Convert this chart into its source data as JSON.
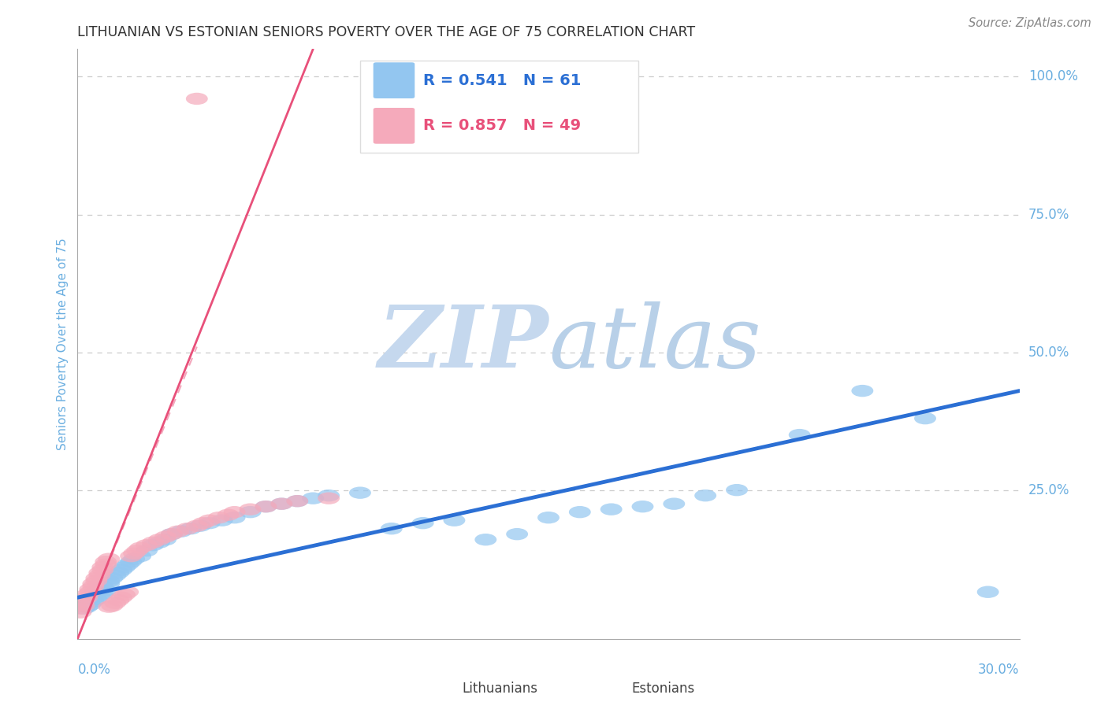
{
  "title": "LITHUANIAN VS ESTONIAN SENIORS POVERTY OVER THE AGE OF 75 CORRELATION CHART",
  "source": "Source: ZipAtlas.com",
  "ylabel": "Seniors Poverty Over the Age of 75",
  "xmin": 0.0,
  "xmax": 0.3,
  "ymin": -0.02,
  "ymax": 1.05,
  "legend_blue_r": "R = 0.541",
  "legend_blue_n": "N = 61",
  "legend_pink_r": "R = 0.857",
  "legend_pink_n": "N = 49",
  "color_blue": "#93C6F0",
  "color_pink": "#F5AABB",
  "color_blue_line": "#2B6FD4",
  "color_pink_line": "#E8507A",
  "color_ytick": "#6AAEE0",
  "watermark_text": "ZIPatlas",
  "watermark_color": "#D8E8F5",
  "lit_x": [
    0.001,
    0.002,
    0.002,
    0.003,
    0.003,
    0.004,
    0.004,
    0.005,
    0.005,
    0.006,
    0.006,
    0.007,
    0.007,
    0.008,
    0.008,
    0.009,
    0.01,
    0.01,
    0.011,
    0.012,
    0.013,
    0.014,
    0.015,
    0.016,
    0.017,
    0.018,
    0.02,
    0.022,
    0.024,
    0.026,
    0.028,
    0.03,
    0.033,
    0.036,
    0.039,
    0.042,
    0.046,
    0.05,
    0.055,
    0.06,
    0.065,
    0.07,
    0.075,
    0.08,
    0.09,
    0.1,
    0.11,
    0.12,
    0.13,
    0.14,
    0.15,
    0.16,
    0.17,
    0.18,
    0.19,
    0.2,
    0.21,
    0.23,
    0.25,
    0.27,
    0.29
  ],
  "lit_y": [
    0.04,
    0.035,
    0.045,
    0.038,
    0.05,
    0.042,
    0.055,
    0.048,
    0.06,
    0.052,
    0.065,
    0.058,
    0.07,
    0.062,
    0.075,
    0.068,
    0.08,
    0.085,
    0.09,
    0.095,
    0.1,
    0.105,
    0.11,
    0.115,
    0.12,
    0.125,
    0.13,
    0.14,
    0.15,
    0.155,
    0.16,
    0.17,
    0.175,
    0.18,
    0.185,
    0.19,
    0.195,
    0.2,
    0.21,
    0.22,
    0.225,
    0.23,
    0.235,
    0.24,
    0.245,
    0.18,
    0.19,
    0.195,
    0.16,
    0.17,
    0.2,
    0.21,
    0.215,
    0.22,
    0.225,
    0.24,
    0.25,
    0.35,
    0.43,
    0.38,
    0.065
  ],
  "est_x": [
    0.001,
    0.001,
    0.002,
    0.002,
    0.003,
    0.003,
    0.004,
    0.004,
    0.005,
    0.005,
    0.006,
    0.006,
    0.007,
    0.007,
    0.008,
    0.008,
    0.009,
    0.009,
    0.01,
    0.01,
    0.011,
    0.012,
    0.013,
    0.014,
    0.015,
    0.016,
    0.017,
    0.018,
    0.019,
    0.02,
    0.022,
    0.024,
    0.026,
    0.028,
    0.03,
    0.032,
    0.035,
    0.038,
    0.04,
    0.042,
    0.045,
    0.048,
    0.05,
    0.055,
    0.06,
    0.065,
    0.07,
    0.08,
    0.038
  ],
  "est_y": [
    0.028,
    0.035,
    0.04,
    0.048,
    0.055,
    0.06,
    0.065,
    0.07,
    0.075,
    0.08,
    0.085,
    0.09,
    0.095,
    0.1,
    0.105,
    0.11,
    0.115,
    0.12,
    0.125,
    0.038,
    0.04,
    0.045,
    0.05,
    0.055,
    0.06,
    0.065,
    0.13,
    0.135,
    0.14,
    0.145,
    0.15,
    0.155,
    0.16,
    0.165,
    0.17,
    0.175,
    0.18,
    0.185,
    0.19,
    0.195,
    0.2,
    0.205,
    0.21,
    0.215,
    0.22,
    0.225,
    0.23,
    0.235,
    0.96
  ],
  "blue_line_x0": 0.0,
  "blue_line_x1": 0.3,
  "blue_line_y0": 0.055,
  "blue_line_y1": 0.43,
  "pink_line_x0": 0.0,
  "pink_line_x1": 0.075,
  "pink_line_y0": -0.02,
  "pink_line_y1": 1.05,
  "pink_line_dashed_x0": 0.0,
  "pink_line_dashed_x1": 0.038,
  "pink_line_dashed_y0": -0.02,
  "pink_line_dashed_y1": 0.51
}
